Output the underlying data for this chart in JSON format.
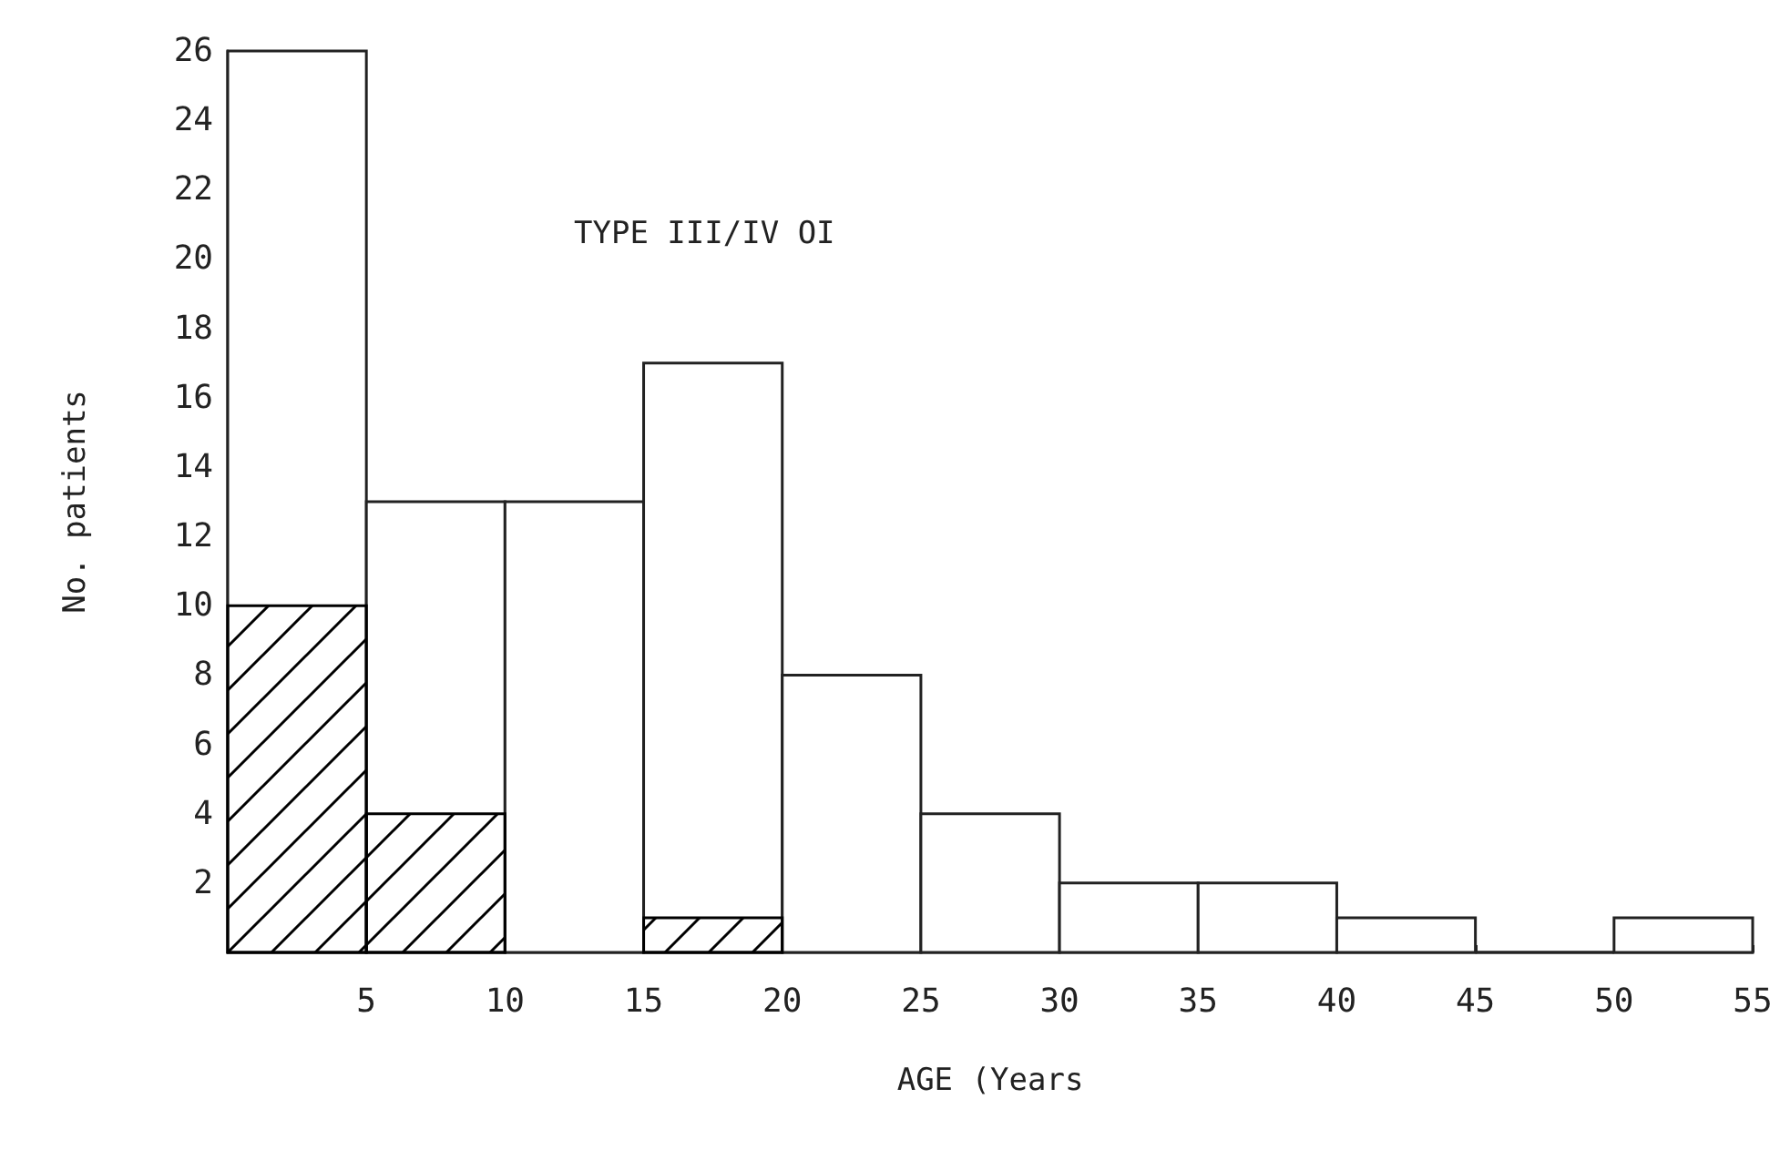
{
  "chart_data": {
    "type": "histogram",
    "title": "TYPE III/IV OI",
    "xlabel": "AGE (Years",
    "ylabel": "No. patients",
    "bins": [
      0,
      5,
      10,
      15,
      20,
      25,
      30,
      35,
      40,
      45,
      50,
      55
    ],
    "series": [
      {
        "color": "#ffffff",
        "values": [
          26,
          13,
          13,
          17,
          8,
          4,
          2,
          2,
          1,
          0,
          1
        ]
      },
      {
        "color": "#000000",
        "values": [
          10,
          4,
          null,
          1,
          null,
          null,
          null,
          null,
          null,
          null,
          null
        ]
      }
    ],
    "xlim": [
      0,
      55
    ],
    "xticks": [
      5,
      10,
      15,
      20,
      25,
      30,
      35,
      40,
      45,
      50,
      55
    ],
    "ylim": [
      0,
      26
    ],
    "yticks": [
      2,
      4,
      6,
      8,
      10,
      12,
      14,
      16,
      18,
      20,
      22,
      24,
      26
    ],
    "grid": false
  }
}
